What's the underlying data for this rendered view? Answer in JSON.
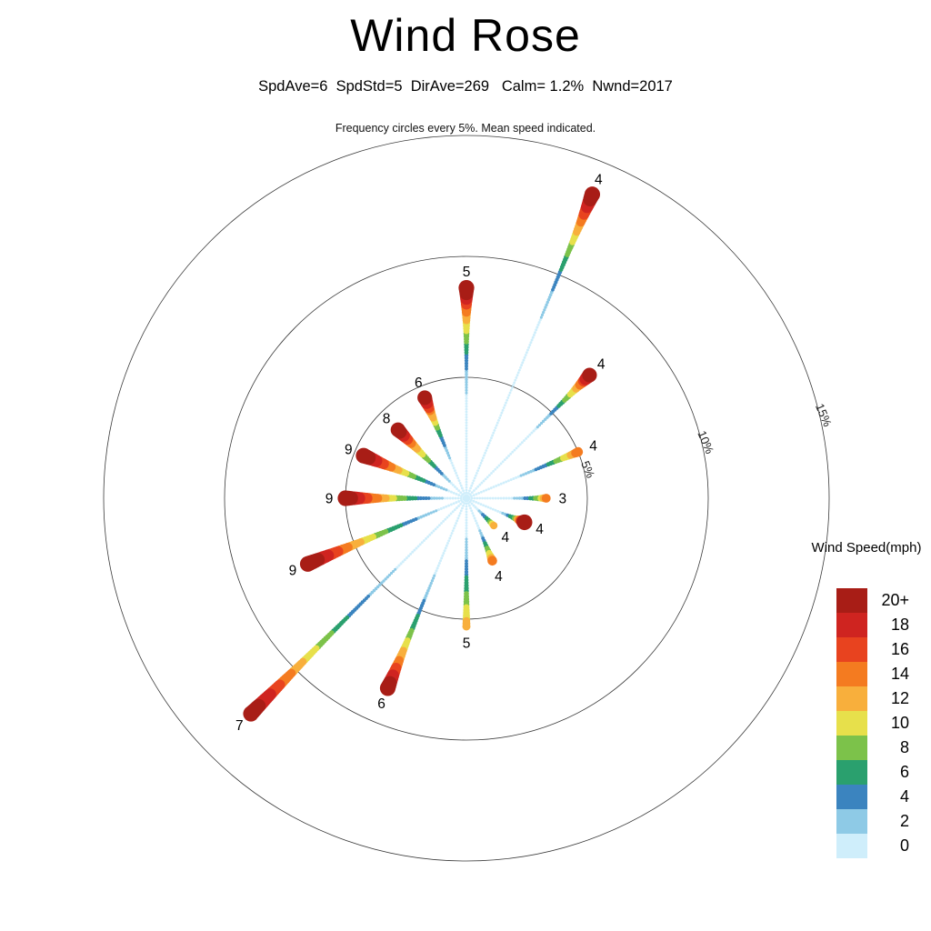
{
  "title": "Wind Rose",
  "stats_line": "SpdAve=6  SpdStd=5  DirAve=269   Calm= 1.2%  Nwnd=2017",
  "caption": "Frequency circles every 5%. Mean speed indicated.",
  "legend": {
    "title": "Wind Speed(mph)",
    "bins": [
      {
        "label": "20+",
        "speed": 20,
        "color": "#a81d16"
      },
      {
        "label": "18",
        "speed": 18,
        "color": "#cf2420"
      },
      {
        "label": "16",
        "speed": 16,
        "color": "#e8431f"
      },
      {
        "label": "14",
        "speed": 14,
        "color": "#f47b20"
      },
      {
        "label": "12",
        "speed": 12,
        "color": "#f8af3c"
      },
      {
        "label": "10",
        "speed": 10,
        "color": "#e7e04b"
      },
      {
        "label": "8",
        "speed": 8,
        "color": "#7cc24a"
      },
      {
        "label": "6",
        "speed": 6,
        "color": "#2aa06e"
      },
      {
        "label": "4",
        "speed": 4,
        "color": "#3b84bf"
      },
      {
        "label": "2",
        "speed": 2,
        "color": "#8ecae6"
      },
      {
        "label": "0",
        "speed": 0,
        "color": "#cfeefb"
      }
    ]
  },
  "chart_data": {
    "type": "wind-rose",
    "ring_step_pct": 5,
    "rings": [
      {
        "label": "5%",
        "pct": 5
      },
      {
        "label": "10%",
        "pct": 10
      },
      {
        "label": "15%",
        "pct": 15
      }
    ],
    "ring_label_angle_deg": 77,
    "ring_label_rotation_deg": 67,
    "max_speed_mph": 22,
    "calm_pct": 1.2,
    "directions": [
      {
        "dir": "N",
        "angle_deg": 0,
        "frequency_pct": 8.7,
        "mean_speed_mph": 5,
        "tip_speed_mph": 22
      },
      {
        "dir": "NNE",
        "angle_deg": 22.5,
        "frequency_pct": 13.6,
        "mean_speed_mph": 4,
        "tip_speed_mph": 22
      },
      {
        "dir": "NE",
        "angle_deg": 45,
        "frequency_pct": 7.2,
        "mean_speed_mph": 4,
        "tip_speed_mph": 21
      },
      {
        "dir": "ENE",
        "angle_deg": 67.5,
        "frequency_pct": 5.0,
        "mean_speed_mph": 4,
        "tip_speed_mph": 15
      },
      {
        "dir": "E",
        "angle_deg": 90,
        "frequency_pct": 3.3,
        "mean_speed_mph": 3,
        "tip_speed_mph": 14
      },
      {
        "dir": "ESE",
        "angle_deg": 112.5,
        "frequency_pct": 2.6,
        "mean_speed_mph": 4,
        "tip_speed_mph": 22
      },
      {
        "dir": "SE",
        "angle_deg": 135,
        "frequency_pct": 1.6,
        "mean_speed_mph": 4,
        "tip_speed_mph": 12
      },
      {
        "dir": "SSE",
        "angle_deg": 157.5,
        "frequency_pct": 2.8,
        "mean_speed_mph": 4,
        "tip_speed_mph": 15
      },
      {
        "dir": "S",
        "angle_deg": 180,
        "frequency_pct": 5.3,
        "mean_speed_mph": 5,
        "tip_speed_mph": 13
      },
      {
        "dir": "SSW",
        "angle_deg": 202.5,
        "frequency_pct": 8.5,
        "mean_speed_mph": 6,
        "tip_speed_mph": 22
      },
      {
        "dir": "SW",
        "angle_deg": 225,
        "frequency_pct": 12.6,
        "mean_speed_mph": 7,
        "tip_speed_mph": 22
      },
      {
        "dir": "WSW",
        "angle_deg": 247.5,
        "frequency_pct": 7.1,
        "mean_speed_mph": 9,
        "tip_speed_mph": 22
      },
      {
        "dir": "W",
        "angle_deg": 270,
        "frequency_pct": 5.0,
        "mean_speed_mph": 9,
        "tip_speed_mph": 22
      },
      {
        "dir": "WNW",
        "angle_deg": 292.5,
        "frequency_pct": 4.6,
        "mean_speed_mph": 9,
        "tip_speed_mph": 22
      },
      {
        "dir": "NW",
        "angle_deg": 315,
        "frequency_pct": 4.0,
        "mean_speed_mph": 8,
        "tip_speed_mph": 21
      },
      {
        "dir": "NNW",
        "angle_deg": 337.5,
        "frequency_pct": 4.5,
        "mean_speed_mph": 6,
        "tip_speed_mph": 21
      }
    ]
  }
}
